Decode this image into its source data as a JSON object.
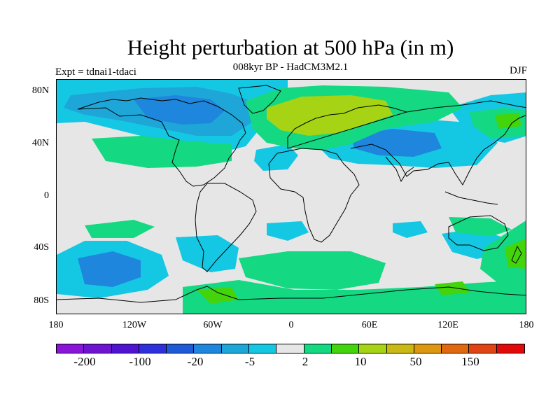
{
  "title": "Height perturbation at 500 hPa (in m)",
  "subtitle": "008kyr BP - HadCM3M2.1",
  "left_label": "Expt = tdnai1-tdaci",
  "right_label": "DJF",
  "map": {
    "background_color": "#e6e6e6",
    "lat_labels": [
      "80N",
      "40N",
      "0",
      "40S",
      "80S"
    ],
    "lon_labels": [
      "180",
      "120W",
      "60W",
      "0",
      "60E",
      "120E",
      "180"
    ]
  },
  "colorbar": {
    "colors": [
      "#8a14d8",
      "#6e14d0",
      "#5014d0",
      "#2e30dc",
      "#1e5ad6",
      "#1e86dc",
      "#1ea6d8",
      "#14c8e4",
      "#e6e6e6",
      "#14d882",
      "#44d40c",
      "#a6d414",
      "#cab814",
      "#dc9810",
      "#e06810",
      "#e04414",
      "#e00a0a"
    ],
    "labels": [
      "-200",
      "-100",
      "-20",
      "-5",
      "2",
      "10",
      "50",
      "150"
    ]
  }
}
